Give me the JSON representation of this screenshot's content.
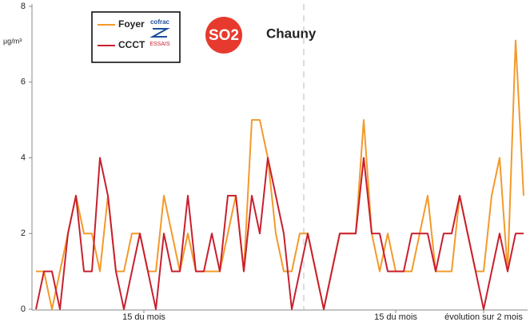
{
  "chart_data": {
    "type": "line",
    "title": "Chauny",
    "badge": "SO2",
    "y_label": "µg/m³",
    "logo": [
      "cofrac",
      "ESSAIS"
    ],
    "ylim": [
      0,
      8
    ],
    "yticks": [
      0,
      2,
      4,
      6,
      8
    ],
    "xlim": [
      0,
      61
    ],
    "xticks": [
      {
        "value": 13.5,
        "label": "15 du mois"
      },
      {
        "value": 45,
        "label": "15 du mois"
      },
      {
        "value": 56,
        "label": "évolution sur 2 mois"
      }
    ],
    "divider_x": 33.5,
    "series": [
      {
        "name": "Foyer",
        "color": "#f39a2b",
        "values": [
          1,
          1,
          0,
          1,
          2,
          3,
          2,
          2,
          1,
          3,
          1,
          1,
          2,
          2,
          1,
          1,
          3,
          2,
          1,
          2,
          1,
          1,
          1,
          1,
          2,
          3,
          1,
          5,
          5,
          4,
          2,
          1,
          1,
          2,
          2,
          1,
          0,
          1,
          2,
          2,
          2,
          5,
          2,
          1,
          2,
          1,
          1,
          1,
          2,
          3,
          1,
          1,
          1,
          3,
          2,
          1,
          1,
          3,
          4,
          1,
          7.1,
          3
        ]
      },
      {
        "name": "CCCT",
        "color": "#c8202f",
        "values": [
          0,
          1,
          1,
          0,
          2,
          3,
          1,
          1,
          4,
          3,
          1,
          0,
          1,
          2,
          1,
          0,
          2,
          1,
          1,
          3,
          1,
          1,
          2,
          1,
          3,
          3,
          1,
          3,
          2,
          4,
          3,
          2,
          0,
          1,
          2,
          1,
          0,
          1,
          2,
          2,
          2,
          4,
          2,
          2,
          1,
          1,
          1,
          2,
          2,
          2,
          1,
          2,
          2,
          3,
          2,
          1,
          0,
          1,
          2,
          1,
          2,
          2
        ]
      }
    ]
  }
}
